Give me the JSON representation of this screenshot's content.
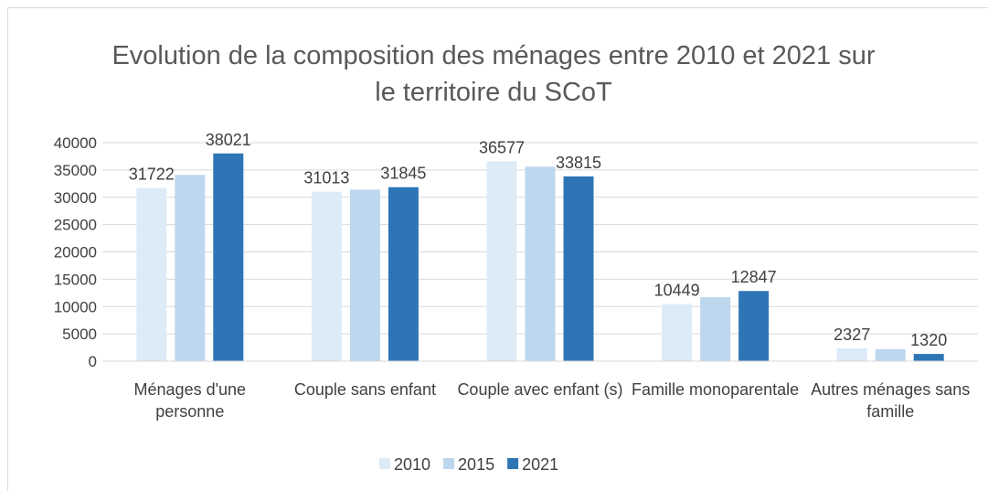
{
  "chart_data": {
    "type": "bar",
    "title": "Evolution de la composition des ménages entre 2010 et 2021 sur le territoire du SCoT",
    "categories": [
      "Ménages d'une personne",
      "Couple sans enfant",
      "Couple avec enfant (s)",
      "Famille monoparentale",
      "Autres ménages sans famille"
    ],
    "series": [
      {
        "name": "2010",
        "color": "#ddebf7",
        "values": [
          31722,
          31013,
          36577,
          10449,
          2327
        ],
        "data_labels": true
      },
      {
        "name": "2015",
        "color": "#bdd7ee",
        "values": [
          34100,
          31400,
          35600,
          11700,
          2200
        ],
        "data_labels": false
      },
      {
        "name": "2021",
        "color": "#2e75b6",
        "values": [
          38021,
          31845,
          33815,
          12847,
          1320
        ],
        "data_labels": true
      }
    ],
    "ylim": [
      0,
      40000
    ],
    "yticks": [
      0,
      5000,
      10000,
      15000,
      20000,
      25000,
      30000,
      35000,
      40000
    ],
    "grid": true,
    "legend": "bottom"
  }
}
